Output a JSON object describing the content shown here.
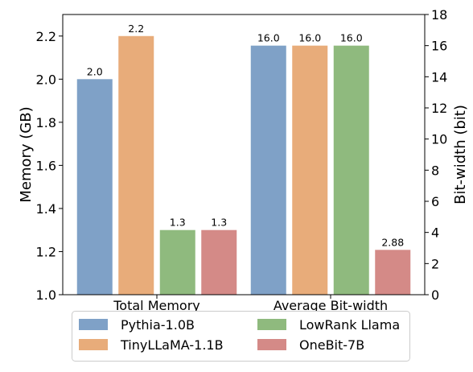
{
  "chart_data": {
    "type": "bar",
    "categories": [
      "Total Memory",
      "Average Bit-width"
    ],
    "series": [
      {
        "name": "Pythia-1.0B",
        "color": "#7fa1c7",
        "values": [
          2.0,
          16.0
        ],
        "labels": [
          "2.0",
          "16.0"
        ],
        "axis": [
          "left",
          "right"
        ]
      },
      {
        "name": "TinyLLaMA-1.1B",
        "color": "#e8ac7a",
        "values": [
          2.2,
          16.0
        ],
        "labels": [
          "2.2",
          "16.0"
        ],
        "axis": [
          "left",
          "right"
        ]
      },
      {
        "name": "LowRank Llama",
        "color": "#8fba7e",
        "values": [
          1.3,
          16.0
        ],
        "labels": [
          "1.3",
          "16.0"
        ],
        "axis": [
          "left",
          "right"
        ]
      },
      {
        "name": "OneBit-7B",
        "color": "#d48a87",
        "values": [
          1.3,
          2.88
        ],
        "labels": [
          "1.3",
          "2.88"
        ],
        "axis": [
          "left",
          "right"
        ]
      }
    ],
    "ylabel": "Memory (GB)",
    "y2label": "Bit-width (bit)",
    "ylim": [
      1.0,
      2.3
    ],
    "y2lim": [
      0,
      18
    ],
    "yticks": [
      "1.0",
      "1.2",
      "1.4",
      "1.6",
      "1.8",
      "2.0",
      "2.2"
    ],
    "y2ticks": [
      "0",
      "2",
      "4",
      "6",
      "8",
      "10",
      "12",
      "14",
      "16",
      "18"
    ],
    "grid": false,
    "legend_position": "bottom"
  }
}
